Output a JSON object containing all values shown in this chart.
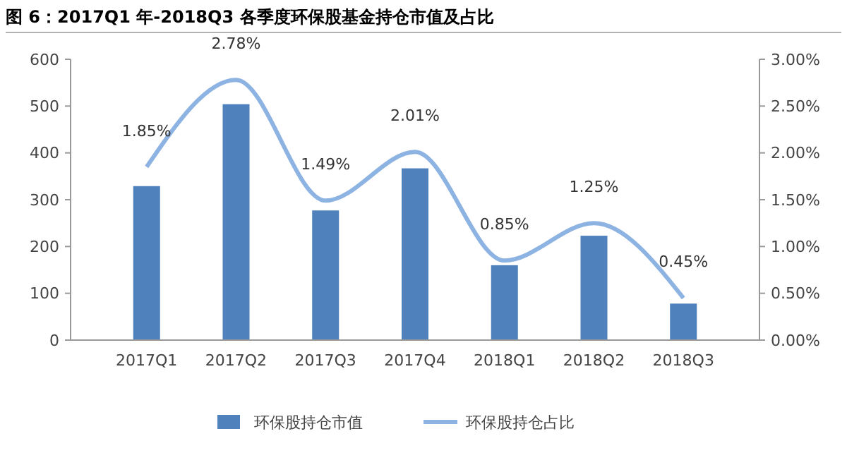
{
  "chart_data": {
    "type": "bar",
    "title": "图 6：2017Q1 年-2018Q3 各季度环保股基金持仓市值及占比",
    "categories": [
      "2017Q1",
      "2017Q2",
      "2017Q3",
      "2017Q4",
      "2018Q1",
      "2018Q2",
      "2018Q3"
    ],
    "series": [
      {
        "name": "环保股持仓市值",
        "color": "#4f81bd",
        "values": [
          329,
          504,
          277,
          367,
          160,
          223,
          78
        ]
      },
      {
        "name": "环保股持仓占比",
        "type": "line",
        "axis": "y2",
        "color": "#8db3e2",
        "values": [
          1.85,
          2.78,
          1.49,
          2.01,
          0.85,
          1.25,
          0.45
        ],
        "value_labels": [
          "1.85%",
          "2.78%",
          "1.49%",
          "2.01%",
          "0.85%",
          "1.25%",
          "0.45%"
        ]
      }
    ],
    "ylim": [
      0,
      600
    ],
    "yticks": [
      0,
      100,
      200,
      300,
      400,
      500,
      600
    ],
    "y2lim": [
      0,
      3
    ],
    "y2ticks": [
      {
        "value": 0,
        "label": "0.00%"
      },
      {
        "value": 0.5,
        "label": "0.50%"
      },
      {
        "value": 1,
        "label": "1.00%"
      },
      {
        "value": 1.5,
        "label": "1.50%"
      },
      {
        "value": 2,
        "label": "2.00%"
      },
      {
        "value": 2.5,
        "label": "2.50%"
      },
      {
        "value": 3,
        "label": "3.00%"
      }
    ],
    "grid": false,
    "legend": "bottom"
  }
}
